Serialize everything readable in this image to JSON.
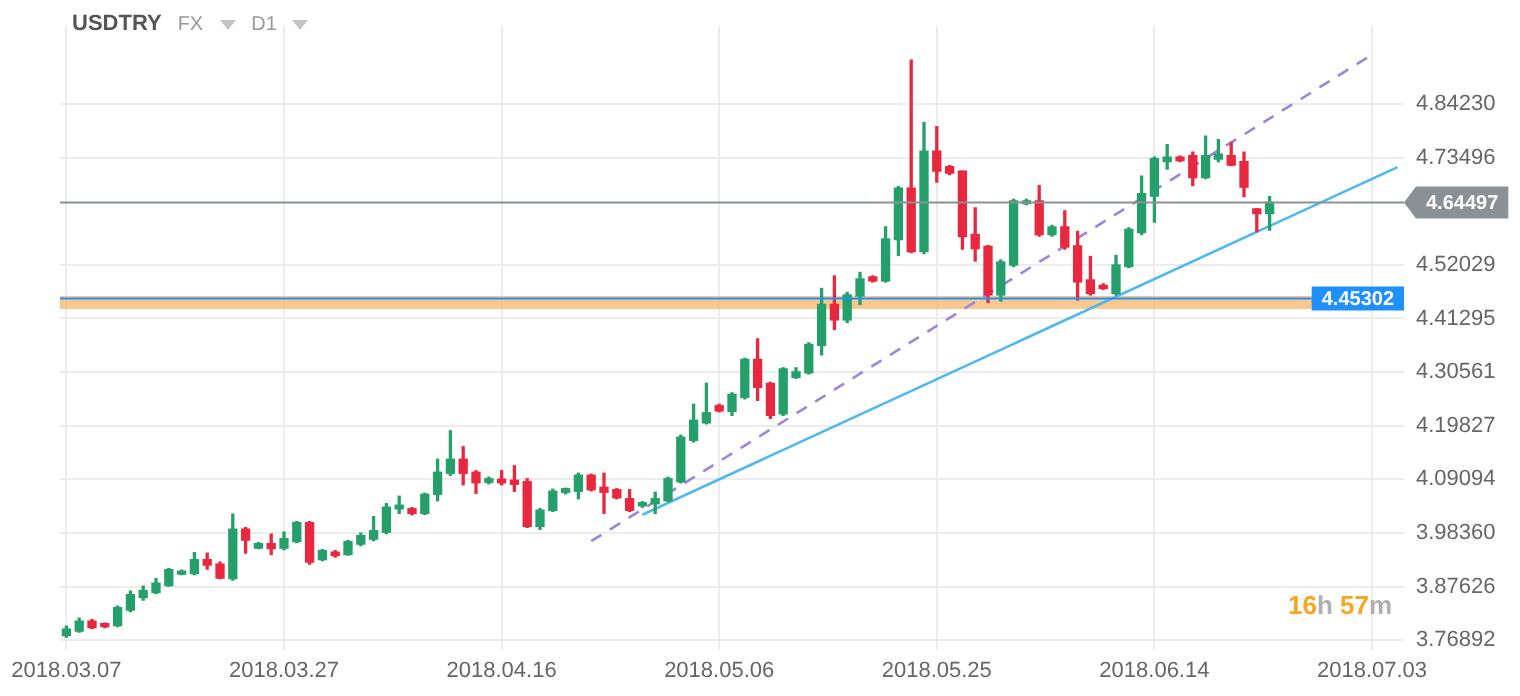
{
  "chart_data": {
    "type": "candlestick",
    "title": "USDTRY",
    "annotations": [
      "FX",
      "D1",
      "16h 57m"
    ],
    "categories": [
      "2018.03.07",
      null,
      null,
      null,
      null,
      null,
      null,
      null,
      null,
      null,
      null,
      null,
      null,
      null,
      null,
      null,
      null,
      "2018.03.27",
      null,
      null,
      null,
      null,
      null,
      null,
      null,
      null,
      null,
      null,
      null,
      null,
      null,
      null,
      null,
      null,
      "2018.04.16",
      null,
      null,
      null,
      null,
      null,
      null,
      null,
      null,
      null,
      null,
      null,
      null,
      null,
      null,
      null,
      null,
      "2018.05.06",
      null,
      null,
      null,
      null,
      null,
      null,
      null,
      null,
      null,
      null,
      null,
      null,
      null,
      null,
      null,
      null,
      "2018.05.25",
      null,
      null,
      null,
      null,
      null,
      null,
      null,
      null,
      null,
      null,
      null,
      null,
      null,
      null,
      null,
      null,
      "2018.06.14",
      null,
      null,
      null,
      null,
      null,
      null,
      null,
      null,
      null,
      null,
      null,
      null,
      null,
      null,
      null,
      null,
      "2018.07.03",
      null,
      null
    ],
    "ohlc": [
      [
        3.778,
        3.797,
        3.775,
        3.791
      ],
      [
        3.787,
        3.813,
        3.785,
        3.807
      ],
      [
        3.807,
        3.81,
        3.792,
        3.794
      ],
      [
        3.802,
        3.803,
        3.794,
        3.796
      ],
      [
        3.798,
        3.837,
        3.796,
        3.834
      ],
      [
        3.829,
        3.867,
        3.826,
        3.86
      ],
      [
        3.854,
        3.877,
        3.849,
        3.868
      ],
      [
        3.864,
        3.892,
        3.862,
        3.883
      ],
      [
        3.878,
        3.912,
        3.877,
        3.91
      ],
      [
        3.901,
        3.909,
        3.9,
        3.907
      ],
      [
        3.902,
        3.944,
        3.9,
        3.93
      ],
      [
        3.93,
        3.943,
        3.911,
        3.919
      ],
      [
        3.921,
        3.925,
        3.892,
        3.893
      ],
      [
        3.892,
        4.021,
        3.889,
        3.991
      ],
      [
        3.991,
        3.994,
        3.943,
        3.969
      ],
      [
        3.953,
        3.964,
        3.952,
        3.962
      ],
      [
        3.962,
        3.981,
        3.94,
        3.952
      ],
      [
        3.953,
        3.985,
        3.95,
        3.972
      ],
      [
        3.966,
        4.006,
        3.964,
        4.004
      ],
      [
        4.004,
        4.006,
        3.921,
        3.925
      ],
      [
        3.93,
        3.95,
        3.928,
        3.948
      ],
      [
        3.945,
        3.948,
        3.935,
        3.938
      ],
      [
        3.94,
        3.968,
        3.939,
        3.966
      ],
      [
        3.961,
        3.983,
        3.958,
        3.978
      ],
      [
        3.971,
        4.016,
        3.968,
        3.988
      ],
      [
        3.985,
        4.042,
        3.982,
        4.035
      ],
      [
        4.032,
        4.057,
        4.023,
        4.039
      ],
      [
        4.032,
        4.034,
        4.02,
        4.023
      ],
      [
        4.023,
        4.063,
        4.021,
        4.061
      ],
      [
        4.061,
        4.131,
        4.048,
        4.105
      ],
      [
        4.103,
        4.188,
        4.099,
        4.131
      ],
      [
        4.131,
        4.156,
        4.08,
        4.103
      ],
      [
        4.105,
        4.108,
        4.063,
        4.084
      ],
      [
        4.085,
        4.095,
        4.082,
        4.092
      ],
      [
        4.091,
        4.108,
        4.08,
        4.084
      ],
      [
        4.089,
        4.118,
        4.067,
        4.081
      ],
      [
        4.086,
        4.092,
        3.995,
        3.997
      ],
      [
        3.997,
        4.032,
        3.991,
        4.029
      ],
      [
        4.029,
        4.071,
        4.027,
        4.067
      ],
      [
        4.065,
        4.073,
        4.062,
        4.072
      ],
      [
        4.067,
        4.103,
        4.052,
        4.099
      ],
      [
        4.099,
        4.101,
        4.068,
        4.07
      ],
      [
        4.075,
        4.103,
        4.023,
        4.065
      ],
      [
        4.07,
        4.072,
        4.052,
        4.054
      ],
      [
        4.052,
        4.07,
        4.027,
        4.029
      ],
      [
        4.038,
        4.046,
        4.035,
        4.044
      ],
      [
        4.042,
        4.065,
        4.023,
        4.052
      ],
      [
        4.048,
        4.095,
        4.047,
        4.092
      ],
      [
        4.086,
        4.179,
        4.084,
        4.175
      ],
      [
        4.169,
        4.241,
        4.166,
        4.209
      ],
      [
        4.204,
        4.283,
        4.202,
        4.224
      ],
      [
        4.238,
        4.241,
        4.226,
        4.228
      ],
      [
        4.227,
        4.264,
        4.219,
        4.261
      ],
      [
        4.255,
        4.333,
        4.252,
        4.331
      ],
      [
        4.331,
        4.372,
        4.249,
        4.275
      ],
      [
        4.283,
        4.285,
        4.213,
        4.219
      ],
      [
        4.222,
        4.314,
        4.219,
        4.312
      ],
      [
        4.295,
        4.314,
        4.293,
        4.306
      ],
      [
        4.304,
        4.364,
        4.302,
        4.361
      ],
      [
        4.359,
        4.473,
        4.34,
        4.441
      ],
      [
        4.441,
        4.498,
        4.391,
        4.41
      ],
      [
        4.41,
        4.465,
        4.405,
        4.46
      ],
      [
        4.458,
        4.505,
        4.441,
        4.492
      ],
      [
        4.496,
        4.498,
        4.486,
        4.488
      ],
      [
        4.488,
        4.596,
        4.486,
        4.572
      ],
      [
        4.571,
        4.677,
        4.539,
        4.674
      ],
      [
        4.674,
        4.93,
        4.545,
        4.547
      ],
      [
        4.547,
        4.805,
        4.543,
        4.748
      ],
      [
        4.748,
        4.797,
        4.686,
        4.708
      ],
      [
        4.717,
        4.719,
        4.701,
        4.704
      ],
      [
        4.708,
        4.708,
        4.552,
        4.577
      ],
      [
        4.581,
        4.634,
        4.528,
        4.553
      ],
      [
        4.557,
        4.559,
        4.445,
        4.46
      ],
      [
        4.46,
        4.53,
        4.448,
        4.526
      ],
      [
        4.52,
        4.651,
        4.517,
        4.648
      ],
      [
        4.643,
        4.651,
        4.641,
        4.648
      ],
      [
        4.648,
        4.679,
        4.578,
        4.581
      ],
      [
        4.581,
        4.599,
        4.578,
        4.596
      ],
      [
        4.596,
        4.628,
        4.552,
        4.556
      ],
      [
        4.558,
        4.587,
        4.45,
        4.486
      ],
      [
        4.49,
        4.537,
        4.46,
        4.463
      ],
      [
        4.479,
        4.482,
        4.471,
        4.473
      ],
      [
        4.463,
        4.539,
        4.46,
        4.52
      ],
      [
        4.517,
        4.594,
        4.515,
        4.591
      ],
      [
        4.585,
        4.698,
        4.581,
        4.663
      ],
      [
        4.658,
        4.736,
        4.606,
        4.733
      ],
      [
        4.727,
        4.761,
        4.712,
        4.736
      ],
      [
        4.736,
        4.738,
        4.727,
        4.729
      ],
      [
        4.739,
        4.746,
        4.679,
        4.695
      ],
      [
        4.695,
        4.778,
        4.693,
        4.739
      ],
      [
        4.732,
        4.771,
        4.727,
        4.742
      ],
      [
        4.739,
        4.765,
        4.719,
        4.72
      ],
      [
        4.727,
        4.746,
        4.657,
        4.676
      ],
      [
        4.632,
        4.632,
        4.587,
        4.623
      ],
      [
        4.623,
        4.657,
        4.59,
        4.645
      ],
      null,
      null,
      null,
      null,
      null,
      null,
      null,
      null,
      null,
      null
    ],
    "colors": [
      "#26a06b",
      "#26a06b",
      "#e8283e",
      "#e8283e",
      "#26a06b",
      "#26a06b",
      "#26a06b",
      "#26a06b",
      "#26a06b",
      "#26a06b",
      "#26a06b",
      "#e8283e",
      "#e8283e",
      "#26a06b",
      "#e8283e",
      "#26a06b",
      "#e8283e",
      "#26a06b",
      "#26a06b",
      "#e8283e",
      "#26a06b",
      "#e8283e",
      "#26a06b",
      "#26a06b",
      "#26a06b",
      "#26a06b",
      "#26a06b",
      "#e8283e",
      "#26a06b",
      "#26a06b",
      "#26a06b",
      "#e8283e",
      "#e8283e",
      "#26a06b",
      "#e8283e",
      "#e8283e",
      "#e8283e",
      "#26a06b",
      "#26a06b",
      "#26a06b",
      "#26a06b",
      "#e8283e",
      "#e8283e",
      "#e8283e",
      "#e8283e",
      "#26a06b",
      "#26a06b",
      "#26a06b",
      "#26a06b",
      "#26a06b",
      "#26a06b",
      "#e8283e",
      "#26a06b",
      "#26a06b",
      "#e8283e",
      "#e8283e",
      "#26a06b",
      "#26a06b",
      "#26a06b",
      "#26a06b",
      "#e8283e",
      "#26a06b",
      "#26a06b",
      "#e8283e",
      "#26a06b",
      "#26a06b",
      "#e8283e",
      "#26a06b",
      "#e8283e",
      "#e8283e",
      "#e8283e",
      "#e8283e",
      "#e8283e",
      "#26a06b",
      "#26a06b",
      "#26a06b",
      "#e8283e",
      "#26a06b",
      "#e8283e",
      "#e8283e",
      "#e8283e",
      "#e8283e",
      "#26a06b",
      "#26a06b",
      "#26a06b",
      "#26a06b",
      "#26a06b",
      "#e8283e",
      "#e8283e",
      "#26a06b",
      "#26a06b",
      "#e8283e",
      "#e8283e",
      "#e8283e",
      "#26a06b",
      null,
      null,
      null,
      null,
      null,
      null,
      null,
      null,
      null,
      null
    ],
    "ylim": [
      3.75,
      5.0
    ],
    "yticks": [
      {
        "value": 3.76892,
        "label": "3.76892"
      },
      {
        "value": 3.87626,
        "label": "3.87626"
      },
      {
        "value": 3.9836,
        "label": "3.98360"
      },
      {
        "value": 4.09094,
        "label": "4.09094"
      },
      {
        "value": 4.19827,
        "label": "4.19827"
      },
      {
        "value": 4.30561,
        "label": "4.30561"
      },
      {
        "value": 4.41295,
        "label": "4.41295"
      },
      {
        "value": 4.52029,
        "label": "4.52029"
      },
      {
        "value": 4.73496,
        "label": "4.73496"
      },
      {
        "value": 4.8423,
        "label": "4.84230"
      }
    ],
    "grid": true,
    "series": [
      {
        "type": "line",
        "color": "#9d84e0",
        "line_style": "dashed",
        "values": [
          null,
          null,
          null,
          null,
          null,
          null,
          null,
          null,
          null,
          null,
          null,
          null,
          null,
          null,
          null,
          null,
          null,
          null,
          null,
          null,
          null,
          null,
          null,
          null,
          null,
          null,
          null,
          null,
          null,
          null,
          null,
          null,
          null,
          null,
          null,
          null,
          null,
          null,
          null,
          null,
          null,
          3.967,
          null,
          null,
          null,
          null,
          null,
          null,
          null,
          null,
          null,
          null,
          null,
          null,
          null,
          null,
          null,
          null,
          null,
          null,
          null,
          null,
          null,
          null,
          null,
          null,
          null,
          null,
          null,
          null,
          null,
          null,
          null,
          null,
          null,
          null,
          null,
          null,
          null,
          null,
          null,
          null,
          null,
          null,
          null,
          null,
          null,
          null,
          null,
          null,
          null,
          null,
          null,
          null,
          null,
          null,
          null,
          null,
          null,
          null,
          null,
          null,
          4.941,
          null,
          null
        ]
      },
      {
        "type": "line",
        "color": "#4fb8ef",
        "line_style": "solid",
        "values": [
          null,
          null,
          null,
          null,
          null,
          null,
          null,
          null,
          null,
          null,
          null,
          null,
          null,
          null,
          null,
          null,
          null,
          null,
          null,
          null,
          null,
          null,
          null,
          null,
          null,
          null,
          null,
          null,
          null,
          null,
          null,
          null,
          null,
          null,
          null,
          null,
          null,
          null,
          null,
          null,
          null,
          null,
          null,
          null,
          null,
          4.02,
          null,
          null,
          null,
          null,
          null,
          null,
          null,
          null,
          null,
          null,
          null,
          null,
          null,
          null,
          null,
          null,
          null,
          null,
          null,
          null,
          null,
          null,
          null,
          null,
          null,
          null,
          null,
          null,
          null,
          null,
          null,
          null,
          null,
          null,
          null,
          null,
          null,
          null,
          null,
          null,
          null,
          null,
          null,
          null,
          null,
          null,
          null,
          null,
          null,
          null,
          null,
          null,
          null,
          null,
          null,
          null,
          null,
          null,
          4.716
        ]
      }
    ],
    "ref_lines": [
      {
        "axis": "y",
        "value": 4.64497,
        "label": "4.64497",
        "color": "#8a9196"
      },
      {
        "axis": "y",
        "value": 4.45302,
        "label": "4.45302",
        "color": "#1e90ff"
      }
    ],
    "bands": [
      {
        "axis": "y",
        "from": 4.432,
        "to": 4.458,
        "color": "#f7b66b"
      }
    ]
  }
}
